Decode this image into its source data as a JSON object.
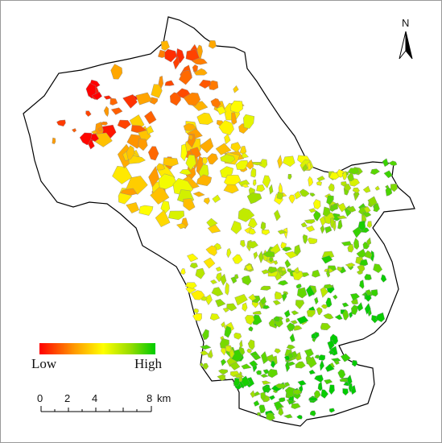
{
  "north_arrow": {
    "label": "N",
    "icon": "north-arrow-icon"
  },
  "legend": {
    "low_label": "Low",
    "high_label": "High",
    "gradient_colors": [
      "#ff0000",
      "#ff9900",
      "#ffff00",
      "#99dd00",
      "#00cc00"
    ]
  },
  "scale_bar": {
    "ticks": [
      "0",
      "2",
      "4",
      "8"
    ],
    "unit": "km"
  },
  "colors": {
    "boundary": "#000000",
    "parcel_outline": "#8a8a8a"
  }
}
